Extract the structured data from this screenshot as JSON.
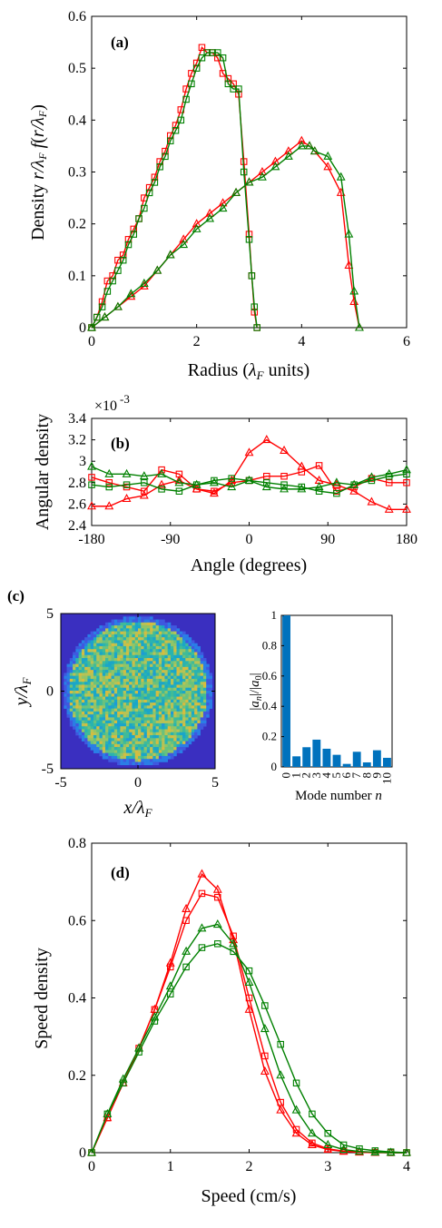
{
  "colors": {
    "red": "#ff0000",
    "green": "#008000",
    "bar": "#0072bd"
  },
  "chart_data": [
    {
      "id": "a",
      "panel_label": "(a)",
      "type": "line",
      "xlabel": "Radius (λ_F units)",
      "ylabel": "Density (r/λ_F) f(r/λ_F)",
      "xlim": [
        0,
        6
      ],
      "ylim": [
        0,
        0.6
      ],
      "xticks": [
        "0",
        "2",
        "4",
        "6"
      ],
      "yticks": [
        "0",
        "0.1",
        "0.2",
        "0.3",
        "0.4",
        "0.5",
        "0.6"
      ],
      "x": [
        0,
        0.1,
        0.2,
        0.3,
        0.4,
        0.5,
        0.6,
        0.7,
        0.8,
        0.9,
        1.0,
        1.1,
        1.2,
        1.3,
        1.4,
        1.5,
        1.6,
        1.7,
        1.8,
        1.9,
        2.0,
        2.1,
        2.2,
        2.3,
        2.4,
        2.5,
        2.6,
        2.7,
        2.8,
        2.9,
        3.0,
        3.05,
        3.1,
        3.15
      ],
      "series": [
        {
          "color": "red",
          "marker": "square",
          "values": [
            0,
            0.02,
            0.05,
            0.09,
            0.1,
            0.13,
            0.14,
            0.17,
            0.19,
            0.21,
            0.25,
            0.27,
            0.29,
            0.32,
            0.34,
            0.37,
            0.39,
            0.42,
            0.46,
            0.49,
            0.51,
            0.54,
            0.53,
            0.53,
            0.52,
            0.49,
            0.48,
            0.47,
            0.45,
            0.32,
            0.18,
            0.1,
            0.03,
            0
          ]
        },
        {
          "color": "green",
          "marker": "square",
          "values": [
            0,
            0.02,
            0.04,
            0.07,
            0.09,
            0.11,
            0.13,
            0.16,
            0.18,
            0.21,
            0.23,
            0.26,
            0.28,
            0.31,
            0.33,
            0.36,
            0.38,
            0.4,
            0.44,
            0.47,
            0.5,
            0.52,
            0.53,
            0.53,
            0.53,
            0.52,
            0.47,
            0.46,
            0.46,
            0.3,
            0.17,
            0.1,
            0.04,
            0
          ]
        }
      ],
      "series2_x": [
        0,
        0.25,
        0.5,
        0.75,
        1.0,
        1.25,
        1.5,
        1.75,
        2.0,
        2.25,
        2.5,
        2.75,
        3.0,
        3.25,
        3.5,
        3.75,
        4.0,
        4.15,
        4.25,
        4.5,
        4.75,
        4.9,
        5.0,
        5.1
      ],
      "series2": [
        {
          "color": "red",
          "marker": "triangle",
          "values": [
            0,
            0.02,
            0.04,
            0.06,
            0.08,
            0.11,
            0.14,
            0.17,
            0.2,
            0.22,
            0.24,
            0.26,
            0.28,
            0.3,
            0.32,
            0.34,
            0.36,
            0.35,
            0.34,
            0.31,
            0.26,
            0.12,
            0.05,
            0
          ]
        },
        {
          "color": "green",
          "marker": "triangle",
          "values": [
            0,
            0.02,
            0.04,
            0.065,
            0.085,
            0.11,
            0.14,
            0.16,
            0.19,
            0.21,
            0.23,
            0.26,
            0.28,
            0.29,
            0.31,
            0.33,
            0.35,
            0.35,
            0.34,
            0.33,
            0.29,
            0.18,
            0.07,
            0
          ]
        }
      ]
    },
    {
      "id": "b",
      "panel_label": "(b)",
      "type": "line",
      "xlabel": "Angle (degrees)",
      "ylabel": "Angular density",
      "exponent_label": "×10",
      "exponent_power": "-3",
      "xlim": [
        -180,
        180
      ],
      "ylim": [
        2.4,
        3.4
      ],
      "xticks": [
        "-180",
        "-90",
        "0",
        "90",
        "180"
      ],
      "yticks": [
        "2.4",
        "2.6",
        "2.8",
        "3",
        "3.2",
        "3.4"
      ],
      "x": [
        -180,
        -160,
        -140,
        -120,
        -100,
        -80,
        -60,
        -40,
        -20,
        0,
        20,
        40,
        60,
        80,
        100,
        120,
        140,
        160,
        180
      ],
      "series": [
        {
          "color": "red",
          "marker": "triangle",
          "values": [
            2.58,
            2.58,
            2.65,
            2.68,
            2.78,
            2.82,
            2.74,
            2.7,
            2.82,
            3.08,
            3.2,
            3.1,
            2.95,
            2.82,
            2.78,
            2.72,
            2.62,
            2.55,
            2.55
          ]
        },
        {
          "color": "red",
          "marker": "square",
          "values": [
            2.85,
            2.8,
            2.76,
            2.72,
            2.92,
            2.88,
            2.74,
            2.72,
            2.8,
            2.82,
            2.86,
            2.86,
            2.9,
            2.96,
            2.72,
            2.76,
            2.84,
            2.8,
            2.8
          ]
        },
        {
          "color": "green",
          "marker": "triangle",
          "values": [
            2.95,
            2.88,
            2.88,
            2.86,
            2.88,
            2.8,
            2.78,
            2.8,
            2.76,
            2.82,
            2.76,
            2.74,
            2.74,
            2.76,
            2.8,
            2.78,
            2.85,
            2.88,
            2.92
          ]
        },
        {
          "color": "green",
          "marker": "square",
          "values": [
            2.78,
            2.76,
            2.78,
            2.8,
            2.74,
            2.72,
            2.78,
            2.82,
            2.84,
            2.82,
            2.8,
            2.78,
            2.76,
            2.72,
            2.7,
            2.78,
            2.82,
            2.86,
            2.88
          ]
        }
      ]
    },
    {
      "id": "c1",
      "panel_label": "(c)",
      "type": "heatmap",
      "xlabel": "x/λ_F",
      "ylabel": "y/λ_F",
      "xlim": [
        -5,
        5
      ],
      "ylim": [
        -5,
        5
      ],
      "xticks": [
        "-5",
        "0",
        "5"
      ],
      "yticks": [
        "-5",
        "0",
        "5"
      ]
    },
    {
      "id": "c2",
      "type": "bar",
      "xlabel": "Mode number n",
      "ylabel": "|a_n|/|a_0|",
      "ylim": [
        0,
        1
      ],
      "categories": [
        "0",
        "1",
        "2",
        "3",
        "4",
        "5",
        "6",
        "7",
        "8",
        "9",
        "10"
      ],
      "values": [
        1.0,
        0.07,
        0.13,
        0.18,
        0.12,
        0.08,
        0.02,
        0.1,
        0.03,
        0.11,
        0.06
      ],
      "yticks": [
        "0",
        "0.2",
        "0.4",
        "0.6",
        "0.8",
        "1"
      ]
    },
    {
      "id": "d",
      "panel_label": "(d)",
      "type": "line",
      "xlabel": "Speed (cm/s)",
      "ylabel": "Speed density",
      "xlim": [
        0,
        4
      ],
      "ylim": [
        0,
        0.8
      ],
      "xticks": [
        "0",
        "1",
        "2",
        "3",
        "4"
      ],
      "yticks": [
        "0",
        "0.2",
        "0.4",
        "0.6",
        "0.8"
      ],
      "x": [
        0,
        0.2,
        0.4,
        0.6,
        0.8,
        1.0,
        1.2,
        1.4,
        1.6,
        1.8,
        2.0,
        2.2,
        2.4,
        2.6,
        2.8,
        3.0,
        3.2,
        3.4,
        3.6,
        3.8,
        4.0
      ],
      "series": [
        {
          "color": "red",
          "marker": "triangle",
          "values": [
            0,
            0.09,
            0.18,
            0.27,
            0.37,
            0.49,
            0.63,
            0.72,
            0.68,
            0.55,
            0.37,
            0.21,
            0.11,
            0.05,
            0.02,
            0.008,
            0.003,
            0.001,
            0,
            0,
            0
          ]
        },
        {
          "color": "red",
          "marker": "square",
          "values": [
            0,
            0.09,
            0.18,
            0.27,
            0.37,
            0.48,
            0.6,
            0.67,
            0.66,
            0.56,
            0.4,
            0.25,
            0.13,
            0.06,
            0.025,
            0.01,
            0.004,
            0.002,
            0.001,
            0,
            0
          ]
        },
        {
          "color": "green",
          "marker": "triangle",
          "values": [
            0,
            0.1,
            0.19,
            0.27,
            0.35,
            0.43,
            0.52,
            0.58,
            0.59,
            0.54,
            0.44,
            0.32,
            0.2,
            0.11,
            0.05,
            0.02,
            0.008,
            0.003,
            0.001,
            0,
            0
          ]
        },
        {
          "color": "green",
          "marker": "square",
          "values": [
            0,
            0.1,
            0.18,
            0.26,
            0.34,
            0.41,
            0.48,
            0.53,
            0.54,
            0.52,
            0.47,
            0.38,
            0.28,
            0.18,
            0.1,
            0.05,
            0.02,
            0.01,
            0.005,
            0.002,
            0
          ]
        }
      ]
    }
  ]
}
